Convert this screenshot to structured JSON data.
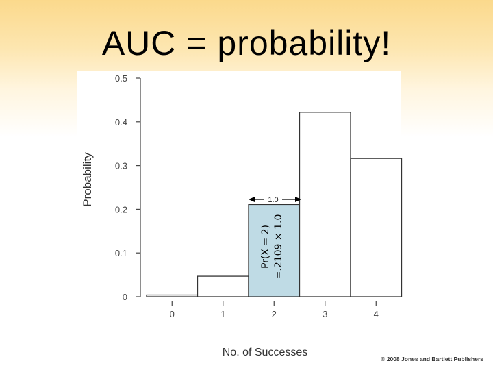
{
  "slide": {
    "title": "AUC = probability!",
    "copyright": "© 2008 Jones and Bartlett Publishers"
  },
  "chart_data": {
    "type": "bar",
    "categories": [
      "0",
      "1",
      "2",
      "3",
      "4"
    ],
    "values": [
      0.0039,
      0.0469,
      0.2109,
      0.4219,
      0.3164
    ],
    "highlight_index": 2,
    "highlight_color": "#bfdbe5",
    "xlabel": "No. of Successes",
    "ylabel": "Probability",
    "ylim": [
      0,
      0.5
    ],
    "yticks": [
      "0",
      "0.1",
      "0.2",
      "0.3",
      "0.4",
      "0.5"
    ],
    "grid": false,
    "annotations": {
      "width_label": "1.0",
      "area_line1": "Pr(X = 2)",
      "area_line2": "=.2109 × 1.0"
    }
  }
}
